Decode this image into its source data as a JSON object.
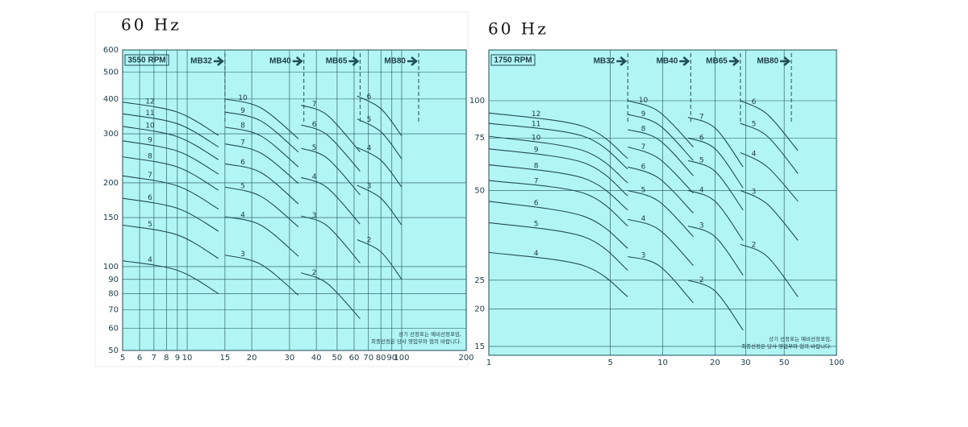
{
  "chart_data": [
    {
      "type": "line",
      "title": "60 Hz",
      "rpm_label": "3550 RPM",
      "xscale": "log",
      "yscale": "log",
      "xlim": [
        5,
        200
      ],
      "ylim": [
        50,
        600
      ],
      "xticks": [
        5,
        6,
        7,
        8,
        9,
        10,
        15,
        20,
        30,
        40,
        50,
        60,
        70,
        80,
        90,
        100,
        200
      ],
      "yticks": [
        50,
        60,
        70,
        80,
        90,
        100,
        150,
        200,
        300,
        400,
        500,
        600
      ],
      "grid": true,
      "color": "#1f4f58",
      "plot_color": "#b2f5f5",
      "models": [
        {
          "label": "MB32",
          "x": 15
        },
        {
          "label": "MB40",
          "x": 35
        },
        {
          "label": "MB65",
          "x": 64
        },
        {
          "label": "MB80",
          "x": 120
        }
      ],
      "series": [
        {
          "name": "12",
          "x": [
            5,
            9,
            14
          ],
          "values": [
            390,
            359,
            296
          ]
        },
        {
          "name": "11",
          "x": [
            5,
            9,
            14
          ],
          "values": [
            354,
            326,
            269
          ]
        },
        {
          "name": "10",
          "x": [
            5,
            9,
            14
          ],
          "values": [
            319,
            293,
            242
          ]
        },
        {
          "name": "9",
          "x": [
            5,
            9,
            14
          ],
          "values": [
            283,
            260,
            215
          ]
        },
        {
          "name": "8",
          "x": [
            5,
            9,
            14
          ],
          "values": [
            248,
            228,
            188
          ]
        },
        {
          "name": "7",
          "x": [
            5,
            9,
            14
          ],
          "values": [
            212,
            195,
            161
          ]
        },
        {
          "name": "6",
          "x": [
            5,
            9,
            14
          ],
          "values": [
            176,
            162,
            134
          ]
        },
        {
          "name": "5",
          "x": [
            5,
            9,
            14
          ],
          "values": [
            141,
            130,
            107
          ]
        },
        {
          "name": "4",
          "x": [
            5,
            9,
            14
          ],
          "values": [
            105,
            97,
            80
          ]
        },
        {
          "name": "10",
          "x": [
            15,
            22,
            33
          ],
          "values": [
            400,
            372,
            288
          ]
        },
        {
          "name": "9",
          "x": [
            15,
            22,
            33
          ],
          "values": [
            359,
            334,
            258
          ]
        },
        {
          "name": "8",
          "x": [
            15,
            22,
            33
          ],
          "values": [
            317,
            295,
            228
          ]
        },
        {
          "name": "7",
          "x": [
            15,
            22,
            33
          ],
          "values": [
            276,
            256,
            199
          ]
        },
        {
          "name": "6",
          "x": [
            15,
            22,
            33
          ],
          "values": [
            234,
            218,
            168
          ]
        },
        {
          "name": "5",
          "x": [
            15,
            22,
            33
          ],
          "values": [
            193,
            179,
            139
          ]
        },
        {
          "name": "4",
          "x": [
            15,
            22,
            33
          ],
          "values": [
            151,
            141,
            109
          ]
        },
        {
          "name": "3",
          "x": [
            15,
            22,
            33
          ],
          "values": [
            110,
            102,
            79
          ]
        },
        {
          "name": "7",
          "x": [
            34,
            45,
            64
          ],
          "values": [
            380,
            350,
            258
          ]
        },
        {
          "name": "6",
          "x": [
            34,
            45,
            64
          ],
          "values": [
            323,
            297,
            220
          ]
        },
        {
          "name": "5",
          "x": [
            34,
            45,
            64
          ],
          "values": [
            266,
            245,
            181
          ]
        },
        {
          "name": "4",
          "x": [
            34,
            45,
            64
          ],
          "values": [
            209,
            192,
            142
          ]
        },
        {
          "name": "3",
          "x": [
            34,
            45,
            64
          ],
          "values": [
            152,
            140,
            103
          ]
        },
        {
          "name": "2",
          "x": [
            34,
            45,
            64
          ],
          "values": [
            95,
            87,
            65
          ]
        },
        {
          "name": "6",
          "x": [
            62,
            80,
            100
          ],
          "values": [
            410,
            369,
            295
          ]
        },
        {
          "name": "5",
          "x": [
            62,
            80,
            100
          ],
          "values": [
            339,
            305,
            244
          ]
        },
        {
          "name": "4",
          "x": [
            62,
            80,
            100
          ],
          "values": [
            268,
            241,
            193
          ]
        },
        {
          "name": "3",
          "x": [
            62,
            80,
            100
          ],
          "values": [
            196,
            176,
            141
          ]
        },
        {
          "name": "2",
          "x": [
            62,
            80,
            100
          ],
          "values": [
            125,
            113,
            90
          ]
        }
      ],
      "notes": [
        "상기 선정표는 예비선정표임,",
        "최종선정은 당사 영업부와 협의 바랍니다."
      ]
    },
    {
      "type": "line",
      "title": "60 Hz",
      "rpm_label": "1750 RPM",
      "xscale": "log",
      "yscale": "log",
      "xlim": [
        1,
        100
      ],
      "ylim": [
        14,
        148
      ],
      "xticks": [
        1,
        5,
        10,
        20,
        30,
        50,
        100
      ],
      "yticks": [
        15,
        20,
        25,
        50,
        75,
        100
      ],
      "grid": true,
      "color": "#1f4f58",
      "plot_color": "#b2f5f5",
      "models": [
        {
          "label": "MB32",
          "x": 6.3
        },
        {
          "label": "MB40",
          "x": 14.5
        },
        {
          "label": "MB65",
          "x": 28
        },
        {
          "label": "MB80",
          "x": 55
        }
      ],
      "series": [
        {
          "name": "12",
          "x": [
            1,
            3.5,
            6.3
          ],
          "values": [
            91,
            82,
            64
          ]
        },
        {
          "name": "11",
          "x": [
            1,
            3.5,
            6.3
          ],
          "values": [
            84,
            76,
            59
          ]
        },
        {
          "name": "10",
          "x": [
            1,
            3.5,
            6.3
          ],
          "values": [
            76,
            68,
            53
          ]
        },
        {
          "name": "9",
          "x": [
            1,
            3.5,
            6.3
          ],
          "values": [
            69,
            62,
            48
          ]
        },
        {
          "name": "8",
          "x": [
            1,
            3.5,
            6.3
          ],
          "values": [
            61,
            55,
            43
          ]
        },
        {
          "name": "7",
          "x": [
            1,
            3.5,
            6.3
          ],
          "values": [
            54,
            49,
            38
          ]
        },
        {
          "name": "6",
          "x": [
            1,
            3.5,
            6.3
          ],
          "values": [
            46,
            41,
            32
          ]
        },
        {
          "name": "5",
          "x": [
            1,
            3.5,
            6.3
          ],
          "values": [
            39,
            35,
            27
          ]
        },
        {
          "name": "4",
          "x": [
            1,
            3.5,
            6.3
          ],
          "values": [
            31,
            28,
            22
          ]
        },
        {
          "name": "10",
          "x": [
            6.3,
            9.5,
            15
          ],
          "values": [
            100,
            92,
            70
          ]
        },
        {
          "name": "9",
          "x": [
            6.3,
            9.5,
            15
          ],
          "values": [
            90,
            83,
            63
          ]
        },
        {
          "name": "8",
          "x": [
            6.3,
            9.5,
            15
          ],
          "values": [
            80,
            74,
            56
          ]
        },
        {
          "name": "7",
          "x": [
            6.3,
            9.5,
            15
          ],
          "values": [
            70,
            64,
            49
          ]
        },
        {
          "name": "6",
          "x": [
            6.3,
            9.5,
            15
          ],
          "values": [
            60,
            55,
            42
          ]
        },
        {
          "name": "5",
          "x": [
            6.3,
            9.5,
            15
          ],
          "values": [
            50,
            46,
            35
          ]
        },
        {
          "name": "4",
          "x": [
            6.3,
            9.5,
            15
          ],
          "values": [
            40,
            37,
            28
          ]
        },
        {
          "name": "3",
          "x": [
            6.3,
            9.5,
            15
          ],
          "values": [
            30,
            28,
            21
          ]
        },
        {
          "name": "7",
          "x": [
            14,
            20,
            29
          ],
          "values": [
            88,
            81,
            60
          ]
        },
        {
          "name": "6",
          "x": [
            14,
            20,
            29
          ],
          "values": [
            75,
            69,
            51
          ]
        },
        {
          "name": "5",
          "x": [
            14,
            20,
            29
          ],
          "values": [
            63,
            58,
            43
          ]
        },
        {
          "name": "4",
          "x": [
            14,
            20,
            29
          ],
          "values": [
            50,
            46,
            34
          ]
        },
        {
          "name": "3",
          "x": [
            14,
            20,
            29
          ],
          "values": [
            38,
            35,
            26
          ]
        },
        {
          "name": "2",
          "x": [
            14,
            20,
            29
          ],
          "values": [
            25,
            23,
            17
          ]
        },
        {
          "name": "6",
          "x": [
            28,
            40,
            60
          ],
          "values": [
            100,
            90,
            68
          ]
        },
        {
          "name": "5",
          "x": [
            28,
            40,
            60
          ],
          "values": [
            84,
            76,
            57
          ]
        },
        {
          "name": "4",
          "x": [
            28,
            40,
            60
          ],
          "values": [
            67,
            60,
            46
          ]
        },
        {
          "name": "3",
          "x": [
            28,
            40,
            60
          ],
          "values": [
            50,
            45,
            34
          ]
        },
        {
          "name": "2",
          "x": [
            28,
            40,
            60
          ],
          "values": [
            33,
            30,
            22
          ]
        }
      ],
      "notes": [
        "상기 선정표는 예비선정표임,",
        "최종선정은 당사 영업부와 협의 바랍니다."
      ]
    }
  ]
}
